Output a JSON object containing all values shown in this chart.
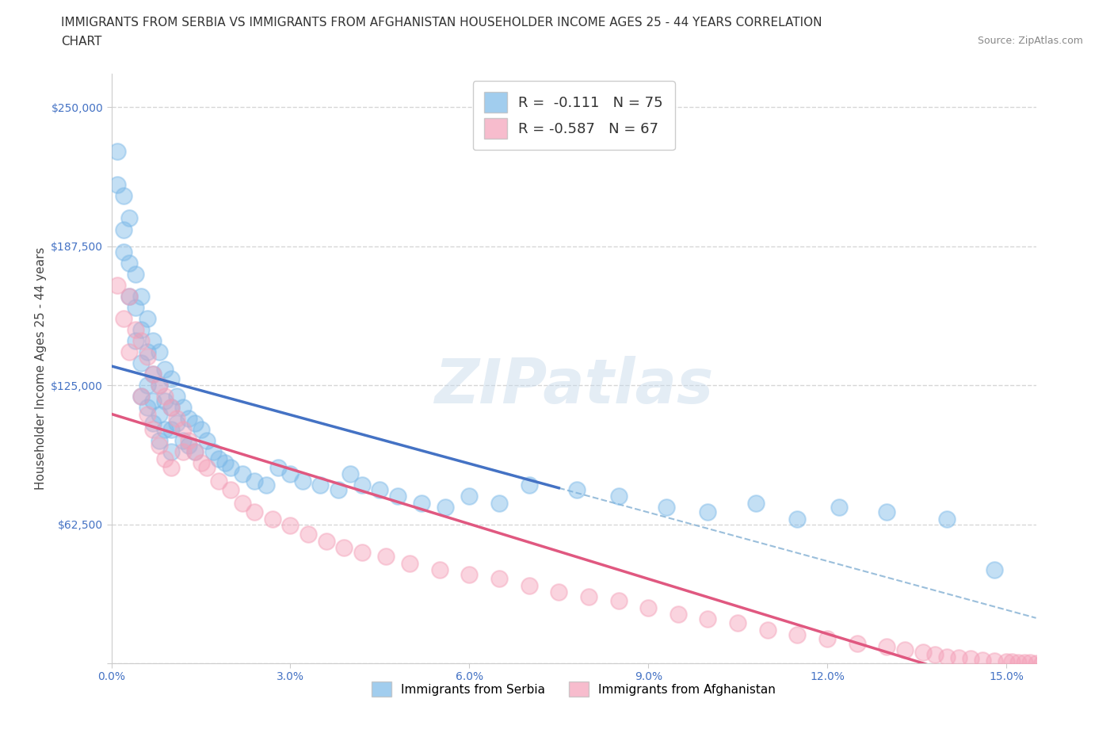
{
  "title_line1": "IMMIGRANTS FROM SERBIA VS IMMIGRANTS FROM AFGHANISTAN HOUSEHOLDER INCOME AGES 25 - 44 YEARS CORRELATION",
  "title_line2": "CHART",
  "source_text": "Source: ZipAtlas.com",
  "ylabel": "Householder Income Ages 25 - 44 years",
  "xlim": [
    0.0,
    0.155
  ],
  "ylim": [
    0,
    265000
  ],
  "yticks": [
    0,
    62500,
    125000,
    187500,
    250000
  ],
  "ytick_labels": [
    "",
    "$62,500",
    "$125,000",
    "$187,500",
    "$250,000"
  ],
  "xticks": [
    0.0,
    0.03,
    0.06,
    0.09,
    0.12,
    0.15
  ],
  "xtick_labels": [
    "0.0%",
    "3.0%",
    "6.0%",
    "9.0%",
    "12.0%",
    "15.0%"
  ],
  "serbia_color": "#7ab8e8",
  "afghanistan_color": "#f4a0b8",
  "serbia_R": -0.111,
  "serbia_N": 75,
  "afghanistan_R": -0.587,
  "afghanistan_N": 67,
  "serbia_scatter_x": [
    0.001,
    0.001,
    0.002,
    0.002,
    0.002,
    0.003,
    0.003,
    0.003,
    0.004,
    0.004,
    0.004,
    0.005,
    0.005,
    0.005,
    0.005,
    0.006,
    0.006,
    0.006,
    0.006,
    0.007,
    0.007,
    0.007,
    0.007,
    0.008,
    0.008,
    0.008,
    0.008,
    0.009,
    0.009,
    0.009,
    0.01,
    0.01,
    0.01,
    0.01,
    0.011,
    0.011,
    0.012,
    0.012,
    0.013,
    0.013,
    0.014,
    0.014,
    0.015,
    0.016,
    0.017,
    0.018,
    0.019,
    0.02,
    0.022,
    0.024,
    0.026,
    0.028,
    0.03,
    0.032,
    0.035,
    0.038,
    0.04,
    0.042,
    0.045,
    0.048,
    0.052,
    0.056,
    0.06,
    0.065,
    0.07,
    0.078,
    0.085,
    0.093,
    0.1,
    0.108,
    0.115,
    0.122,
    0.13,
    0.14,
    0.148
  ],
  "serbia_scatter_y": [
    230000,
    215000,
    210000,
    195000,
    185000,
    200000,
    180000,
    165000,
    175000,
    160000,
    145000,
    165000,
    150000,
    135000,
    120000,
    155000,
    140000,
    125000,
    115000,
    145000,
    130000,
    118000,
    108000,
    140000,
    125000,
    112000,
    100000,
    132000,
    118000,
    105000,
    128000,
    115000,
    105000,
    95000,
    120000,
    108000,
    115000,
    100000,
    110000,
    98000,
    108000,
    95000,
    105000,
    100000,
    95000,
    92000,
    90000,
    88000,
    85000,
    82000,
    80000,
    88000,
    85000,
    82000,
    80000,
    78000,
    85000,
    80000,
    78000,
    75000,
    72000,
    70000,
    75000,
    72000,
    80000,
    78000,
    75000,
    70000,
    68000,
    72000,
    65000,
    70000,
    68000,
    65000,
    42000
  ],
  "afghanistan_scatter_x": [
    0.001,
    0.002,
    0.003,
    0.003,
    0.004,
    0.005,
    0.005,
    0.006,
    0.006,
    0.007,
    0.007,
    0.008,
    0.008,
    0.009,
    0.009,
    0.01,
    0.01,
    0.011,
    0.012,
    0.012,
    0.013,
    0.014,
    0.015,
    0.016,
    0.018,
    0.02,
    0.022,
    0.024,
    0.027,
    0.03,
    0.033,
    0.036,
    0.039,
    0.042,
    0.046,
    0.05,
    0.055,
    0.06,
    0.065,
    0.07,
    0.075,
    0.08,
    0.085,
    0.09,
    0.095,
    0.1,
    0.105,
    0.11,
    0.115,
    0.12,
    0.125,
    0.13,
    0.133,
    0.136,
    0.138,
    0.14,
    0.142,
    0.144,
    0.146,
    0.148,
    0.15,
    0.151,
    0.152,
    0.153,
    0.154,
    0.155,
    0.156
  ],
  "afghanistan_scatter_y": [
    170000,
    155000,
    165000,
    140000,
    150000,
    145000,
    120000,
    138000,
    112000,
    130000,
    105000,
    125000,
    98000,
    120000,
    92000,
    115000,
    88000,
    110000,
    105000,
    95000,
    100000,
    95000,
    90000,
    88000,
    82000,
    78000,
    72000,
    68000,
    65000,
    62000,
    58000,
    55000,
    52000,
    50000,
    48000,
    45000,
    42000,
    40000,
    38000,
    35000,
    32000,
    30000,
    28000,
    25000,
    22000,
    20000,
    18000,
    15000,
    13000,
    11000,
    9000,
    7500,
    6000,
    5000,
    4000,
    3000,
    2500,
    2000,
    1500,
    1000,
    800,
    600,
    400,
    300,
    200,
    100,
    50
  ],
  "watermark_text": "ZIPatlas",
  "background_color": "#ffffff",
  "grid_color": "#cccccc",
  "axis_color": "#4472c4",
  "serbia_line_color": "#4472c4",
  "afghanistan_line_color": "#e05880",
  "dashed_line_color": "#90b8d8",
  "title_fontsize": 11,
  "axis_label_fontsize": 11,
  "tick_fontsize": 10
}
